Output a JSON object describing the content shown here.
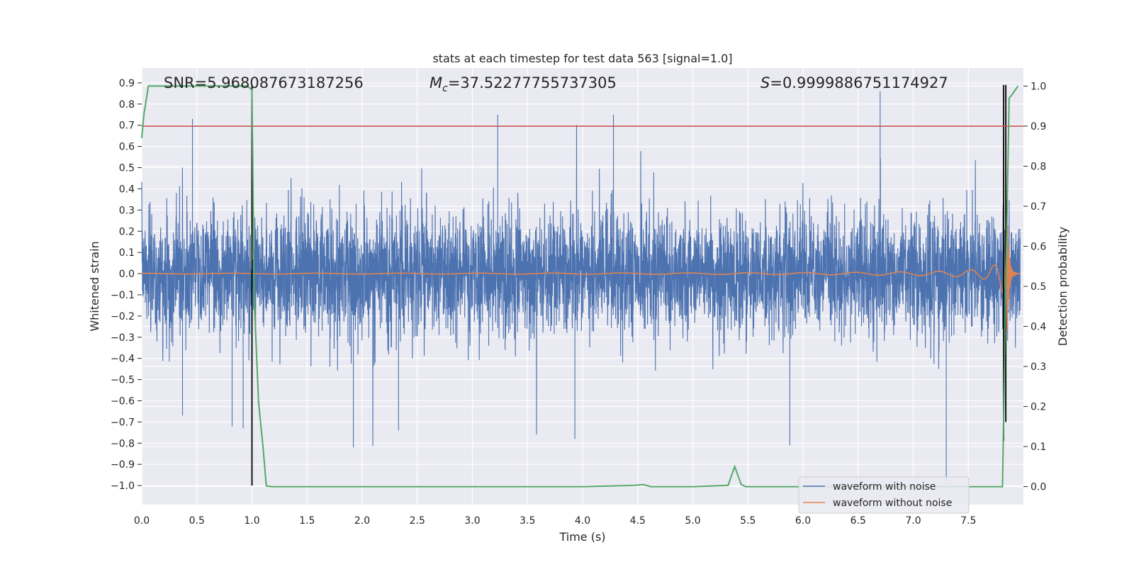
{
  "chart_data": {
    "type": "line",
    "title": "stats at each timestep for test data 563 [signal=1.0]",
    "xlabel": "Time (s)",
    "ylabel": "Whitened strain",
    "y2label": "Detection probability",
    "xlim": [
      0.0,
      8.0
    ],
    "ylim": [
      -1.09,
      0.97
    ],
    "y2lim": [
      -0.045,
      1.045
    ],
    "xticks": [
      "0.0",
      "0.5",
      "1.0",
      "1.5",
      "2.0",
      "2.5",
      "3.0",
      "3.5",
      "4.0",
      "4.5",
      "5.0",
      "5.5",
      "6.0",
      "6.5",
      "7.0",
      "7.5"
    ],
    "yticks": [
      "0.9",
      "0.8",
      "0.7",
      "0.6",
      "0.5",
      "0.4",
      "0.3",
      "0.2",
      "0.1",
      "0.0",
      "-0.1",
      "-0.2",
      "-0.3",
      "-0.4",
      "-0.5",
      "-0.6",
      "-0.7",
      "-0.8",
      "-0.9",
      "-1.0"
    ],
    "y2ticks": [
      "1.0",
      "0.9",
      "0.8",
      "0.7",
      "0.6",
      "0.5",
      "0.4",
      "0.3",
      "0.2",
      "0.1",
      "0.0"
    ],
    "grid": true,
    "annotations": {
      "snr": "SNR=5.968087673187256",
      "mc_symbol": "M",
      "mc_sub": "c",
      "mc_value": "=37.52277755737305",
      "s_symbol": "S",
      "s_value": "=0.9999886751174927"
    },
    "legend": {
      "position": "lower-right",
      "entries": [
        "waveform with noise",
        "waveform without noise"
      ]
    },
    "series": [
      {
        "name": "waveform with noise",
        "color": "#4c72b0",
        "axis": "left",
        "description": "dense whitened noisy strain, approx range",
        "envelope_core": [
          -0.3,
          0.32
        ],
        "typical_peaks": [
          -0.85,
          0.75
        ],
        "notable_spikes": [
          {
            "x": 0.37,
            "y": -0.67
          },
          {
            "x": 0.46,
            "y": 0.73
          },
          {
            "x": 0.82,
            "y": -0.72
          },
          {
            "x": 0.92,
            "y": -0.73
          },
          {
            "x": 1.92,
            "y": -0.82
          },
          {
            "x": 2.33,
            "y": -0.74
          },
          {
            "x": 3.23,
            "y": 0.75
          },
          {
            "x": 3.93,
            "y": -0.78
          },
          {
            "x": 4.28,
            "y": 0.75
          },
          {
            "x": 5.88,
            "y": -0.81
          },
          {
            "x": 6.7,
            "y": 0.86
          },
          {
            "x": 7.3,
            "y": -0.98
          },
          {
            "x": 7.82,
            "y": -0.75
          }
        ]
      },
      {
        "name": "waveform without noise",
        "color": "#dd8452",
        "axis": "left",
        "description": "chirp signal growing in amplitude and frequency, merging near t=7.85",
        "chirp": {
          "t_merge": 7.85,
          "peak_amplitude": 0.35,
          "start_visible": 3.5
        }
      },
      {
        "name": "detection probability",
        "color": "#55a868",
        "axis": "right",
        "x": [
          0.0,
          0.02,
          0.06,
          0.1,
          0.15,
          0.3,
          0.5,
          0.7,
          0.9,
          0.96,
          1.0,
          1.02,
          1.06,
          1.1,
          1.13,
          1.18,
          2.0,
          3.0,
          4.0,
          4.46,
          4.55,
          4.62,
          4.8,
          5.0,
          5.32,
          5.38,
          5.44,
          5.48,
          6.0,
          7.0,
          7.81,
          7.84,
          7.87,
          7.9,
          7.95
        ],
        "values": [
          0.87,
          0.93,
          1.0,
          1.0,
          1.0,
          1.0,
          1.0,
          1.0,
          1.0,
          1.0,
          0.99,
          0.47,
          0.21,
          0.1,
          0.002,
          0.0,
          0.0,
          0.0,
          0.0,
          0.003,
          0.005,
          0.0,
          0.0,
          0.0,
          0.003,
          0.05,
          0.005,
          0.0,
          0.0,
          0.0,
          0.0,
          0.5,
          0.97,
          0.98,
          1.0
        ]
      }
    ],
    "threshold": {
      "value": 0.9,
      "axis": "right",
      "color": "#c44e52"
    },
    "vertical_markers": [
      {
        "x": 1.0,
        "y_from": -1.0,
        "y_to": 0.89,
        "color": "#000000"
      },
      {
        "x": 7.82,
        "y_from": -0.79,
        "y_to": 0.89,
        "color": "#000000"
      },
      {
        "x": 7.84,
        "y_from": -0.7,
        "y_to": 0.89,
        "color": "#000000"
      }
    ]
  }
}
